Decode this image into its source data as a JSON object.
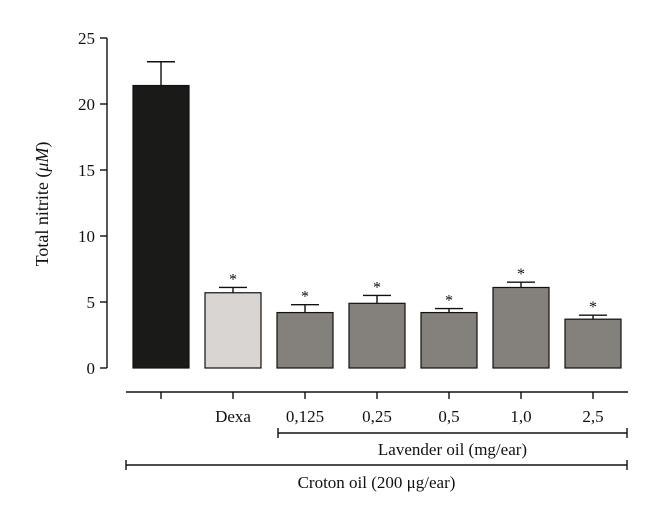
{
  "chart_data": {
    "type": "bar",
    "title": "",
    "ylabel_prefix": "Total nitrite (",
    "ylabel_unit": "μM",
    "ylabel_suffix": ")",
    "ylim": [
      0,
      25
    ],
    "yticks": [
      0,
      5,
      10,
      15,
      20,
      25
    ],
    "grid": false,
    "categories": [
      "",
      "Dexa",
      "0,125",
      "0,25",
      "0,5",
      "1,0",
      "2,5"
    ],
    "values": [
      21.4,
      5.7,
      4.2,
      4.9,
      4.2,
      6.1,
      3.7
    ],
    "errors": [
      1.8,
      0.4,
      0.6,
      0.6,
      0.3,
      0.4,
      0.3
    ],
    "significant": [
      false,
      true,
      true,
      true,
      true,
      true,
      true
    ],
    "significance_marker": "*",
    "bar_colors": [
      "#1a1a18",
      "#d9d5d3",
      "#84807c",
      "#84807c",
      "#84807c",
      "#84807c",
      "#84807c"
    ],
    "groups": [
      {
        "label": "Lavender oil (mg/ear)",
        "from_index": 2,
        "to_index": 6
      },
      {
        "label": "Croton oil (200 μg/ear)",
        "from_index": 0,
        "to_index": 6
      }
    ]
  }
}
